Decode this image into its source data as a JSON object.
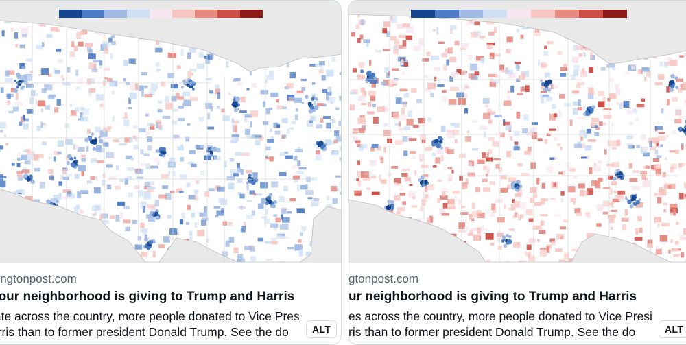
{
  "legend": {
    "colors": [
      "#16478c",
      "#4d7cc4",
      "#9fb9e3",
      "#cfe0f4",
      "#f7e6f0",
      "#f7c6c2",
      "#e68a80",
      "#cc4f47",
      "#8e1a1a"
    ]
  },
  "cards": [
    {
      "id": "left",
      "map_theme": "blue-dominant",
      "domain_text": "hingtonpost.com",
      "title_text": " your neighborhood is giving to Trump and Harris",
      "desc_line1": "tate across the country, more people donated to Vice Pres",
      "desc_line2": "arris than to former president Donald Trump. See the do",
      "alt_label": "ALT"
    },
    {
      "id": "right",
      "map_theme": "red-dominant",
      "domain_text": "gtonpost.com",
      "title_text": "ur neighborhood is giving to Trump and Harris",
      "desc_line1": "es across the country, more people donated to Vice Presi",
      "desc_line2": "ris than to former president Donald Trump. See the do",
      "alt_label": "ALT"
    }
  ],
  "colors": {
    "water": "#e9e9e9",
    "land": "#ffffff",
    "state_border": "#d8d8d8"
  }
}
